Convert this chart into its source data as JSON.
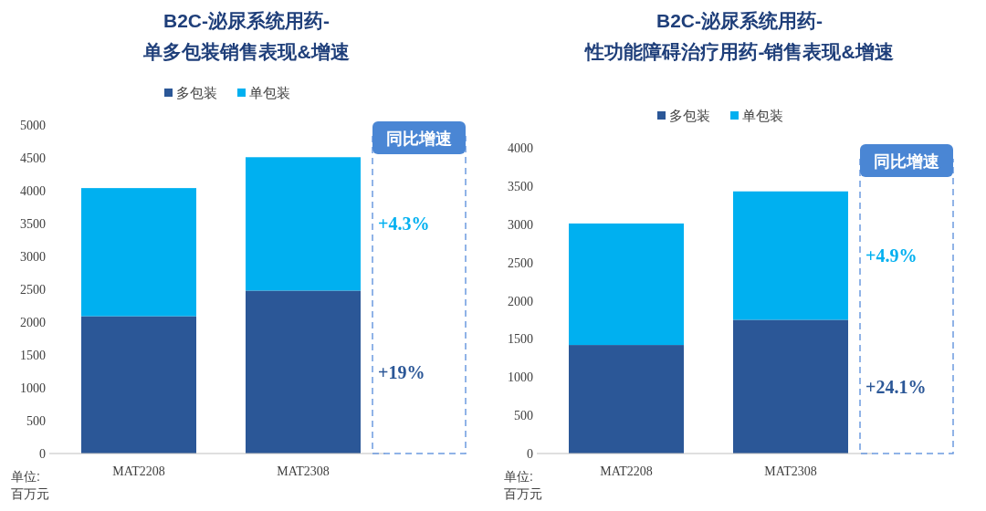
{
  "chart_data": [
    {
      "type": "bar",
      "stacked": true,
      "title": "B2C-泌尿系统用药-\n单多包装销售表现&增速",
      "categories": [
        "MAT2208",
        "MAT2308"
      ],
      "series": [
        {
          "name": "多包装",
          "color": "#2b5797",
          "values": [
            2090,
            2480
          ]
        },
        {
          "name": "单包装",
          "color": "#00b0f0",
          "values": [
            1950,
            2030
          ]
        }
      ],
      "ylim": [
        0,
        5000
      ],
      "yticks": [
        0,
        500,
        1000,
        1500,
        2000,
        2500,
        3000,
        3500,
        4000,
        4500,
        5000
      ],
      "legend": "top",
      "grid": false,
      "annotations": [
        "同比增速",
        "+4.3%",
        "+19%",
        "单位:\n百万元"
      ]
    },
    {
      "type": "bar",
      "stacked": true,
      "title": "B2C-泌尿系统用药-\n性功能障碍治疗用药-销售表现&增速",
      "categories": [
        "MAT2208",
        "MAT2308"
      ],
      "series": [
        {
          "name": "多包装",
          "color": "#2b5797",
          "values": [
            1420,
            1750
          ]
        },
        {
          "name": "单包装",
          "color": "#00b0f0",
          "values": [
            1590,
            1680
          ]
        }
      ],
      "ylim": [
        0,
        4000
      ],
      "yticks": [
        0,
        500,
        1000,
        1500,
        2000,
        2500,
        3000,
        3500,
        4000
      ],
      "legend": "top",
      "grid": false,
      "annotations": [
        "同比增速",
        "+4.9%",
        "+24.1%",
        "单位:\n百万元"
      ]
    }
  ]
}
